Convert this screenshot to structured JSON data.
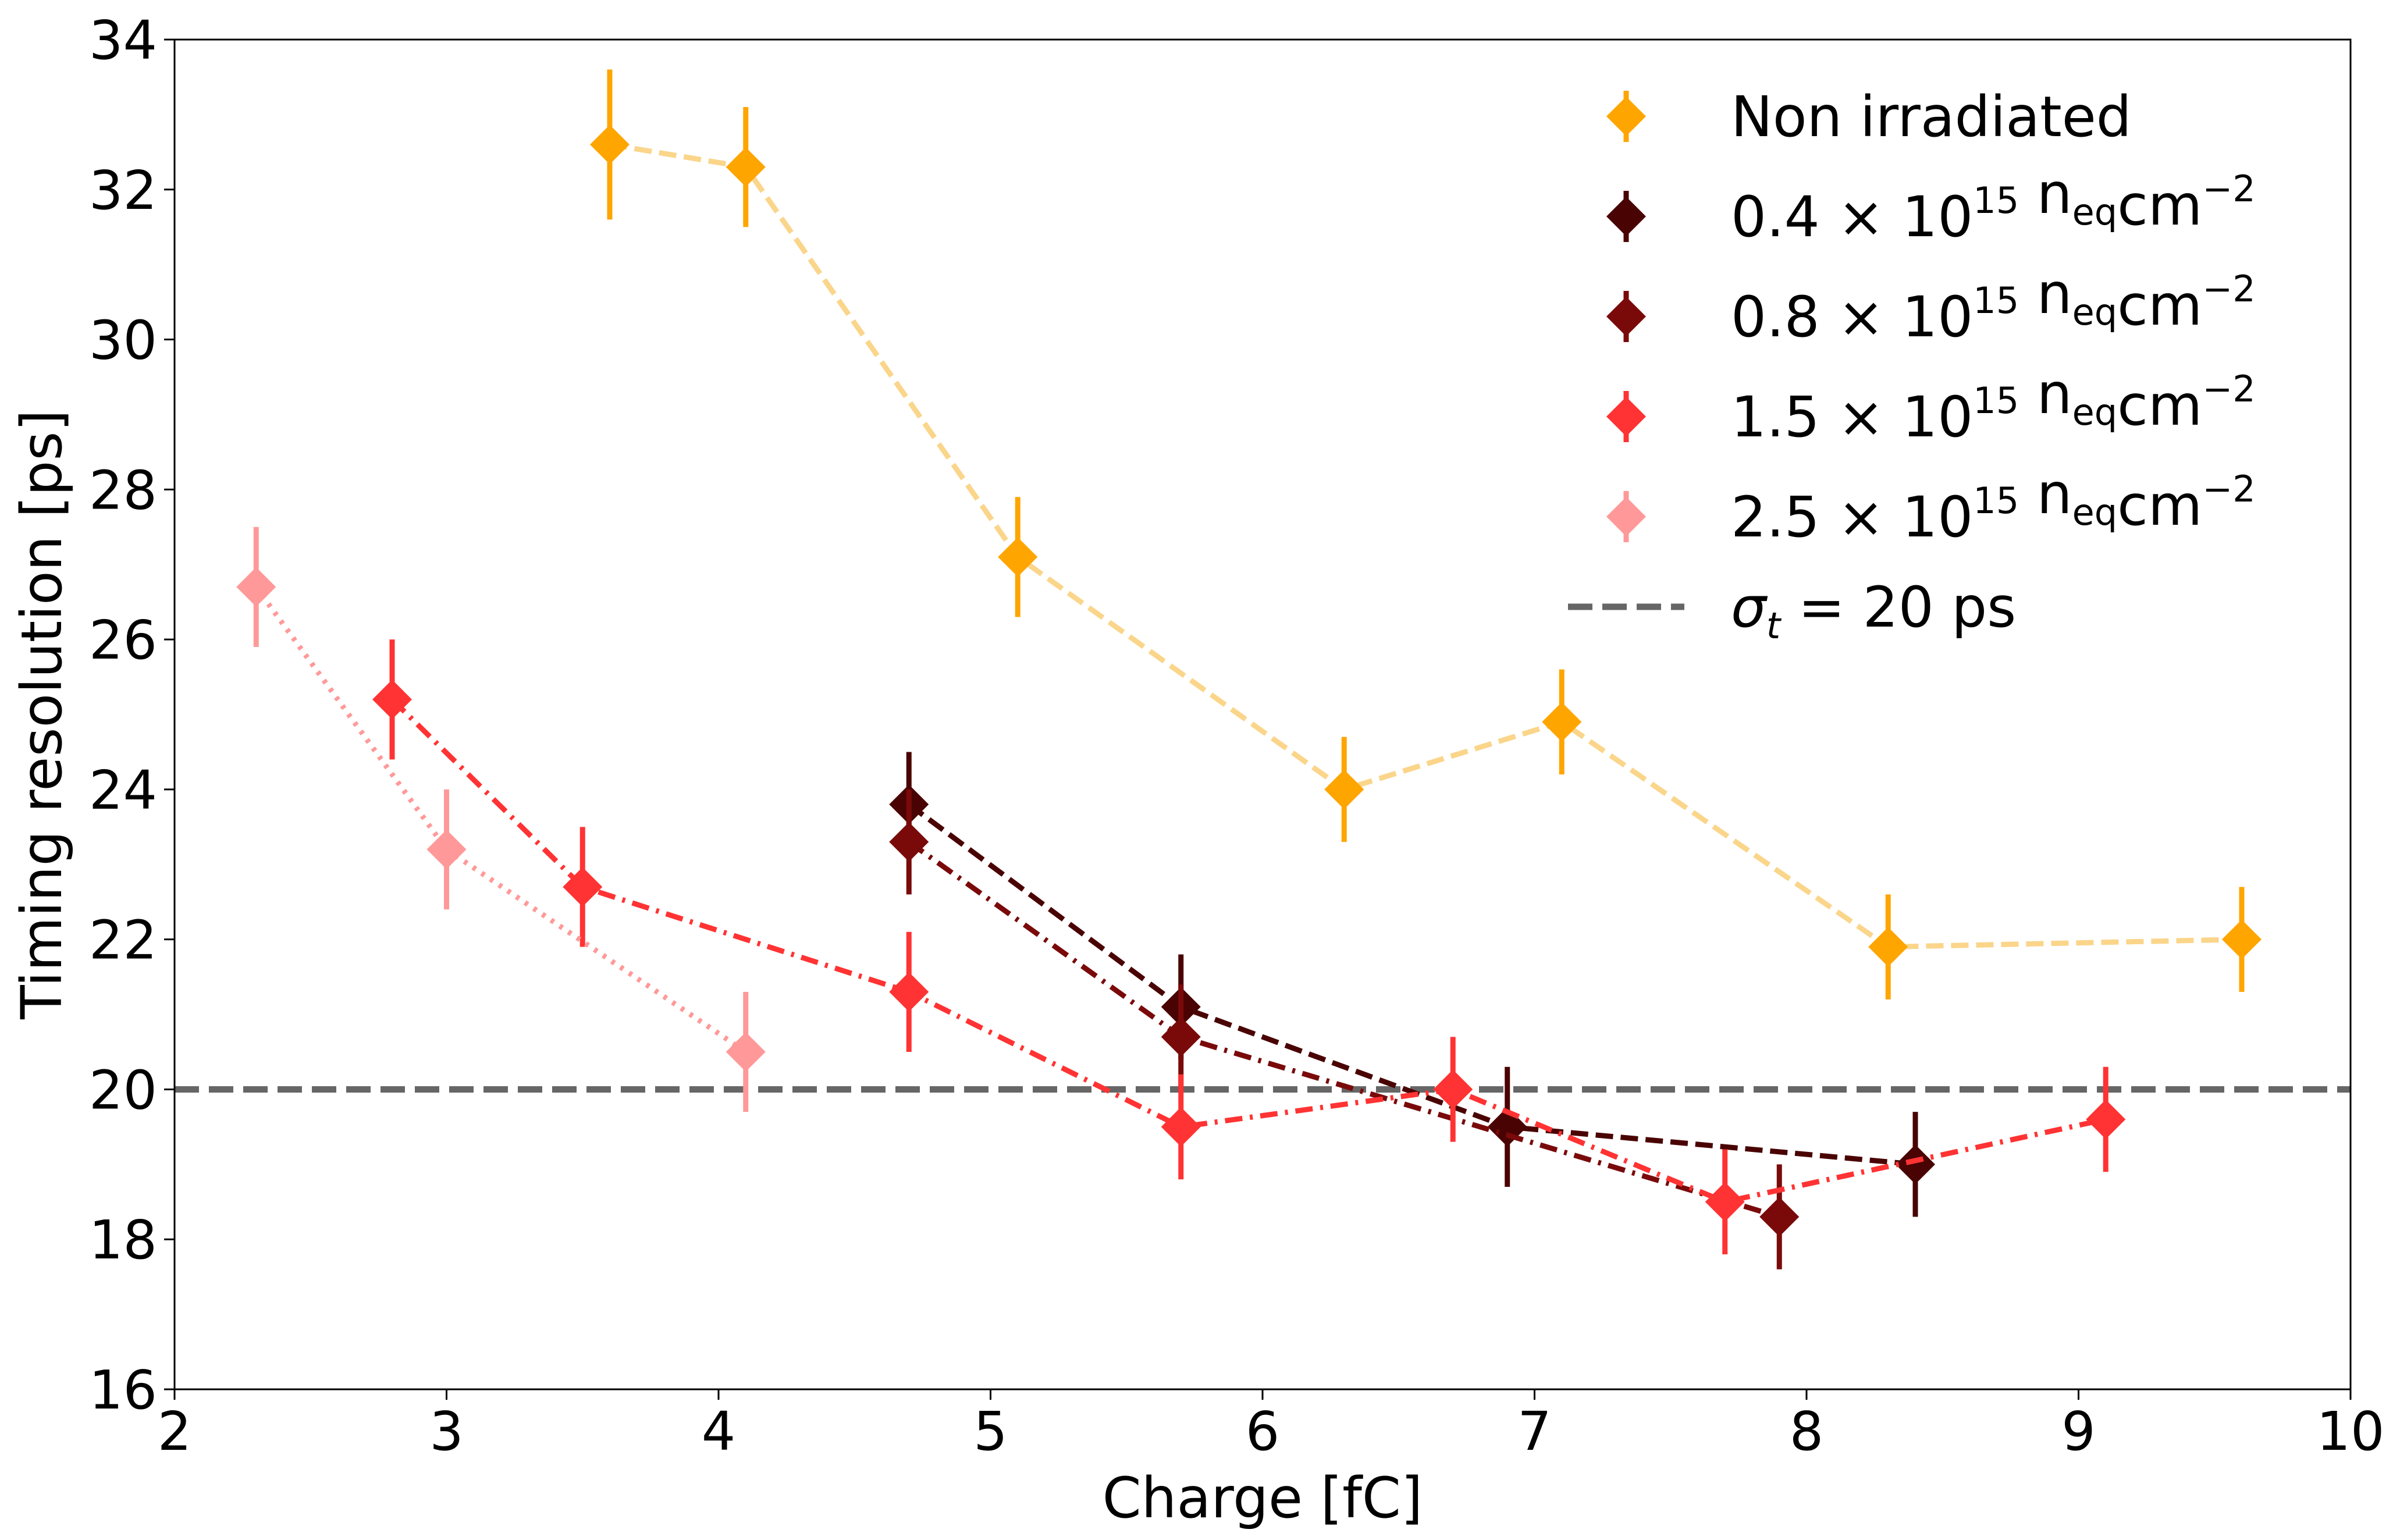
{
  "chart_data": {
    "type": "scatter",
    "title": "",
    "xlabel": "Charge [fC]",
    "ylabel": "Timing resolution [ps]",
    "xlim": [
      2,
      10
    ],
    "ylim": [
      16,
      34
    ],
    "xticks": [
      2,
      3,
      4,
      5,
      6,
      7,
      8,
      9,
      10
    ],
    "yticks": [
      16,
      18,
      20,
      22,
      24,
      26,
      28,
      30,
      32,
      34
    ],
    "grid": false,
    "legend_position": "top-right",
    "reference_line": {
      "label_sym": "σ",
      "label_sub": "t",
      "label_rest": " = 20 ps",
      "y": 20,
      "color": "#666666",
      "style": "dashed"
    },
    "series": [
      {
        "name": "Non irradiated",
        "label_main": "Non irradiated",
        "color": "#ffa500",
        "line_color": "#fad58a",
        "line_style": "dashed",
        "x": [
          3.6,
          4.1,
          5.1,
          6.3,
          7.1,
          8.3,
          9.6
        ],
        "y": [
          32.6,
          32.3,
          27.1,
          24.0,
          24.9,
          21.9,
          22.0
        ],
        "yerr": [
          1.0,
          0.8,
          0.8,
          0.7,
          0.7,
          0.7,
          0.7
        ]
      },
      {
        "name": "0.4 × 10^15 n_eq cm^-2",
        "label_main": "0.4 × 10",
        "label_exp": "15",
        "label_unit": " n",
        "label_unit_sub": "eq",
        "label_unit2": "cm",
        "label_unit2_exp": "−2",
        "color": "#4a0303",
        "line_color": "#4a0303",
        "line_style": "dashed",
        "x": [
          4.7,
          5.7,
          6.9,
          8.4
        ],
        "y": [
          23.8,
          21.1,
          19.5,
          19.0
        ],
        "yerr": [
          0.7,
          0.7,
          0.8,
          0.7
        ]
      },
      {
        "name": "0.8 × 10^15 n_eq cm^-2",
        "label_main": "0.8 × 10",
        "label_exp": "15",
        "label_unit": " n",
        "label_unit_sub": "eq",
        "label_unit2": "cm",
        "label_unit2_exp": "−2",
        "color": "#7a0a0a",
        "line_color": "#7a0a0a",
        "line_style": "dashdot",
        "x": [
          4.7,
          5.7,
          7.9
        ],
        "y": [
          23.3,
          20.7,
          18.3
        ],
        "yerr": [
          0.7,
          0.7,
          0.7
        ]
      },
      {
        "name": "1.5 × 10^15 n_eq cm^-2",
        "label_main": "1.5 × 10",
        "label_exp": "15",
        "label_unit": " n",
        "label_unit_sub": "eq",
        "label_unit2": "cm",
        "label_unit2_exp": "−2",
        "color": "#ff3333",
        "line_color": "#ff3333",
        "line_style": "dashdot",
        "x": [
          2.8,
          3.5,
          4.7,
          5.7,
          6.7,
          7.7,
          9.1
        ],
        "y": [
          25.2,
          22.7,
          21.3,
          19.5,
          20.0,
          18.5,
          19.6
        ],
        "yerr": [
          0.8,
          0.8,
          0.8,
          0.7,
          0.7,
          0.7,
          0.7
        ]
      },
      {
        "name": "2.5 × 10^15 n_eq cm^-2",
        "label_main": "2.5 × 10",
        "label_exp": "15",
        "label_unit": " n",
        "label_unit_sub": "eq",
        "label_unit2": "cm",
        "label_unit2_exp": "−2",
        "color": "#ff9999",
        "line_color": "#ff9999",
        "line_style": "dotted",
        "x": [
          2.3,
          3.0,
          4.1
        ],
        "y": [
          26.7,
          23.2,
          20.5
        ],
        "yerr": [
          0.8,
          0.8,
          0.8
        ]
      }
    ]
  }
}
